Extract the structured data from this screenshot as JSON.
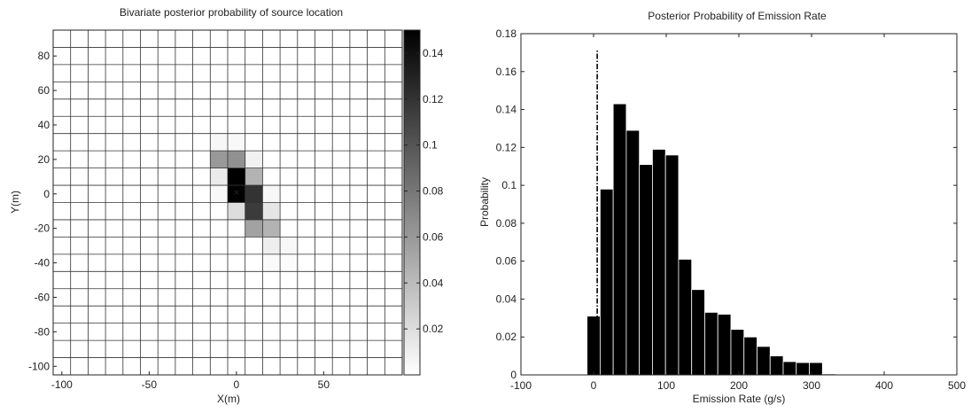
{
  "chart_data": [
    {
      "type": "heatmap",
      "title": "Bivariate posterior probability of source location",
      "xlabel": "X(m)",
      "ylabel": "Y(m)",
      "xlim": [
        -105,
        95
      ],
      "ylim": [
        -105,
        95
      ],
      "x_ticks": [
        -100,
        -50,
        0,
        50
      ],
      "y_ticks": [
        -100,
        -80,
        -60,
        -40,
        -20,
        0,
        20,
        40,
        60,
        80
      ],
      "grid": true,
      "cell_size": 10,
      "colormap": "gray-reversed",
      "colorbar": {
        "range": [
          0,
          0.15
        ],
        "ticks": [
          0.02,
          0.04,
          0.06,
          0.08,
          0.1,
          0.12,
          0.14
        ]
      },
      "marker": {
        "symbol": "×",
        "x": 0,
        "y": 1,
        "color": "#ffffff"
      },
      "cells": [
        {
          "x": -10,
          "y": 30,
          "p": 0.005
        },
        {
          "x": 0,
          "y": 30,
          "p": 0.004
        },
        {
          "x": -10,
          "y": 20,
          "p": 0.06
        },
        {
          "x": 0,
          "y": 20,
          "p": 0.065
        },
        {
          "x": 10,
          "y": 20,
          "p": 0.008
        },
        {
          "x": -10,
          "y": 10,
          "p": 0.012
        },
        {
          "x": 0,
          "y": 10,
          "p": 0.15
        },
        {
          "x": 10,
          "y": 10,
          "p": 0.045
        },
        {
          "x": -10,
          "y": 0,
          "p": 0.004
        },
        {
          "x": 0,
          "y": 0,
          "p": 0.15
        },
        {
          "x": 10,
          "y": 0,
          "p": 0.12
        },
        {
          "x": 20,
          "y": 0,
          "p": 0.005
        },
        {
          "x": 0,
          "y": -10,
          "p": 0.02
        },
        {
          "x": 10,
          "y": -10,
          "p": 0.115
        },
        {
          "x": 20,
          "y": -10,
          "p": 0.015
        },
        {
          "x": 10,
          "y": -20,
          "p": 0.055
        },
        {
          "x": 20,
          "y": -20,
          "p": 0.045
        },
        {
          "x": 20,
          "y": -30,
          "p": 0.01
        },
        {
          "x": 30,
          "y": -30,
          "p": 0.004
        },
        {
          "x": 20,
          "y": -40,
          "p": 0.003
        },
        {
          "x": 30,
          "y": -40,
          "p": 0.002
        }
      ]
    },
    {
      "type": "bar",
      "title": "Posterior Probability of Emission Rate",
      "xlabel": "Emission Rate (g/s)",
      "ylabel": "Probability",
      "xlim": [
        -100,
        500
      ],
      "ylim": [
        0,
        0.18
      ],
      "x_ticks": [
        -100,
        0,
        100,
        200,
        300,
        400,
        500
      ],
      "y_ticks": [
        0,
        0.02,
        0.04,
        0.06,
        0.08,
        0.1,
        0.12,
        0.14,
        0.16,
        0.18
      ],
      "y_tick_labels": [
        "0",
        "0.02",
        "0.04",
        "0.06",
        "0.08",
        "0.1",
        "0.12",
        "0.14",
        "0.16",
        "0.18"
      ],
      "bar_width": 18,
      "x": [
        0,
        18,
        36,
        54,
        72,
        90,
        108,
        126,
        144,
        162,
        180,
        198,
        216,
        234,
        252,
        270,
        288,
        306,
        324,
        342
      ],
      "values": [
        0.031,
        0.098,
        0.143,
        0.129,
        0.111,
        0.119,
        0.116,
        0.061,
        0.045,
        0.033,
        0.032,
        0.024,
        0.02,
        0.015,
        0.01,
        0.007,
        0.0065,
        0.0065,
        0.0005,
        0.0
      ],
      "reference_line": {
        "x": 5,
        "y_top": 0.172,
        "style": "dash-dot"
      }
    }
  ]
}
